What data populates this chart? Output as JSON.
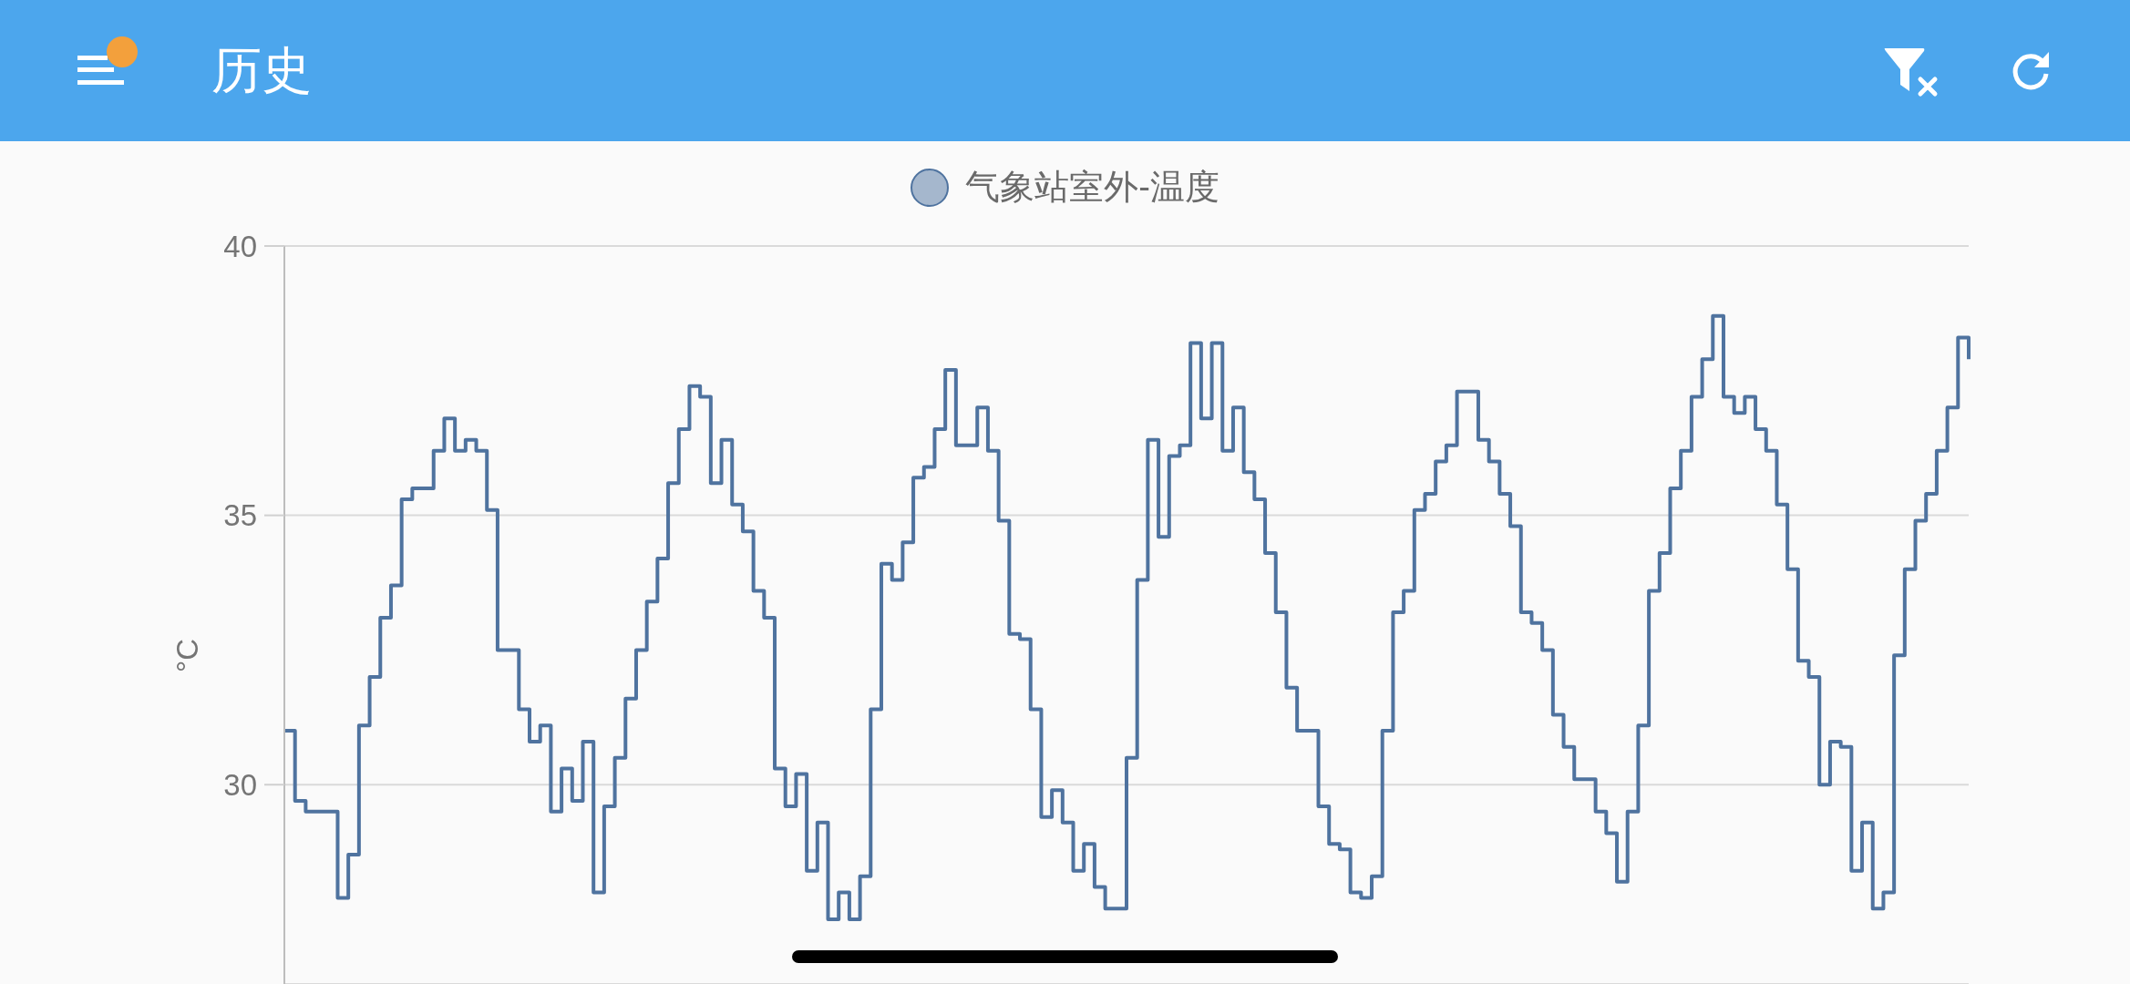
{
  "chart_data": {
    "type": "step",
    "title": "历史",
    "ylabel": "°C",
    "categories": [
      null,
      null,
      null,
      null,
      null,
      null,
      null,
      null,
      null,
      null,
      null,
      null,
      null,
      null,
      null,
      null,
      null,
      null,
      null,
      null,
      null,
      null,
      null,
      null,
      null,
      null,
      null,
      null,
      null,
      null,
      null,
      null,
      null,
      null,
      null,
      null,
      null,
      null,
      null,
      null,
      null,
      null,
      null,
      null,
      null,
      null,
      null,
      null,
      null,
      null,
      null,
      null,
      null,
      null,
      null,
      null,
      null,
      null,
      null,
      null,
      null,
      null,
      null,
      null,
      null,
      null,
      null,
      null,
      null,
      null,
      null,
      null,
      null,
      null,
      null,
      null,
      null,
      null,
      null,
      null,
      null,
      null,
      null,
      null,
      null,
      null,
      null,
      null,
      null,
      null,
      null,
      null,
      null,
      null,
      null,
      null,
      null,
      null,
      null,
      null,
      null,
      null,
      null,
      null,
      null,
      null,
      null,
      null,
      null,
      null,
      null,
      null,
      null,
      null,
      null,
      null,
      null,
      null,
      null,
      null,
      null,
      null,
      null,
      null,
      null,
      null,
      null,
      null,
      null,
      null,
      null,
      null,
      null,
      null,
      null,
      null,
      null,
      null,
      null,
      null,
      null,
      null,
      null,
      null,
      null,
      null,
      null,
      null,
      null,
      null,
      null,
      null,
      null,
      null,
      null,
      null,
      null,
      null,
      null
    ],
    "series": [
      {
        "name": "气象站室外-温度",
        "color": "#4f739f",
        "values": [
          31.0,
          29.7,
          29.5,
          29.5,
          29.5,
          27.9,
          28.7,
          31.1,
          32.0,
          33.1,
          33.7,
          35.3,
          35.5,
          35.5,
          36.2,
          36.8,
          36.2,
          36.4,
          36.2,
          35.1,
          32.5,
          32.5,
          31.4,
          30.8,
          31.1,
          29.5,
          30.3,
          29.7,
          30.8,
          28.0,
          29.6,
          30.5,
          31.6,
          32.5,
          33.4,
          34.2,
          35.6,
          36.6,
          37.4,
          37.2,
          35.6,
          36.4,
          35.2,
          34.7,
          33.6,
          33.1,
          30.3,
          29.6,
          30.2,
          28.4,
          29.3,
          27.5,
          28.0,
          27.5,
          28.3,
          31.4,
          34.1,
          33.8,
          34.5,
          35.7,
          35.9,
          36.6,
          37.7,
          36.3,
          36.3,
          37.0,
          36.2,
          34.9,
          32.8,
          32.7,
          31.4,
          29.4,
          29.9,
          29.3,
          28.4,
          28.9,
          28.1,
          27.7,
          27.7,
          30.5,
          33.8,
          36.4,
          34.6,
          36.1,
          36.3,
          38.2,
          36.8,
          38.2,
          36.2,
          37.0,
          35.8,
          35.3,
          34.3,
          33.2,
          31.8,
          31.0,
          31.0,
          29.6,
          28.9,
          28.8,
          28.0,
          27.9,
          28.3,
          31.0,
          33.2,
          33.6,
          35.1,
          35.4,
          36.0,
          36.3,
          37.3,
          37.3,
          36.4,
          36.0,
          35.4,
          34.8,
          33.2,
          33.0,
          32.5,
          31.3,
          30.7,
          30.1,
          30.1,
          29.5,
          29.1,
          28.2,
          29.5,
          31.1,
          33.6,
          34.3,
          35.5,
          36.2,
          37.2,
          37.9,
          38.7,
          37.2,
          36.9,
          37.2,
          36.6,
          36.2,
          35.2,
          34.0,
          32.3,
          32.0,
          30.0,
          30.8,
          30.7,
          28.4,
          29.3,
          27.7,
          28.0,
          32.4,
          34.0,
          34.9,
          35.4,
          36.2,
          37.0,
          38.3,
          37.9
        ]
      }
    ],
    "ylim": [
      26.3,
      40
    ],
    "yticks": [
      30,
      35,
      40
    ],
    "grid": "y",
    "legend": "top",
    "tick_labels": "y"
  }
}
